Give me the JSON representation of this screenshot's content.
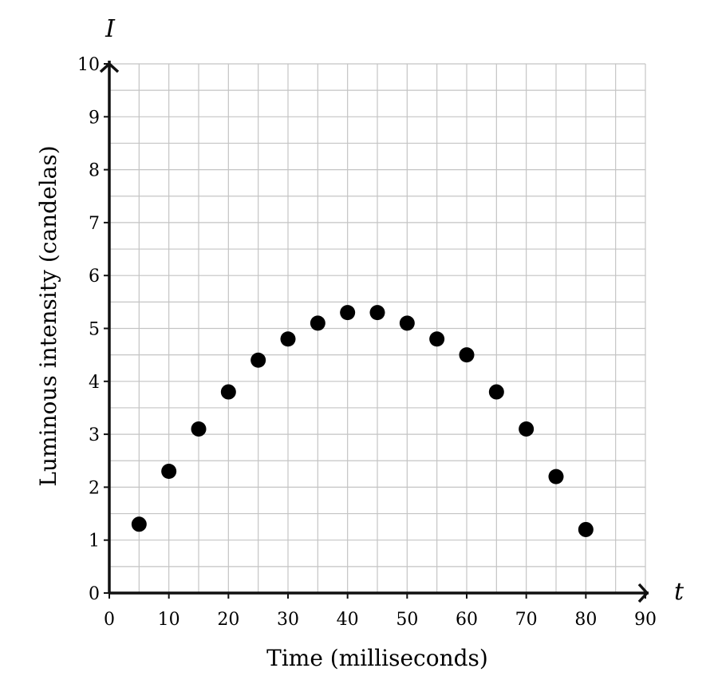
{
  "chart_data": {
    "type": "scatter",
    "title": "",
    "xlabel": "Time (milliseconds)",
    "ylabel": "Luminous intensity (candelas)",
    "x_variable": "t",
    "y_variable": "I",
    "xlim": [
      0,
      90
    ],
    "ylim": [
      0,
      10
    ],
    "x_ticks": [
      0,
      10,
      20,
      30,
      40,
      50,
      60,
      70,
      80,
      90
    ],
    "y_ticks": [
      0,
      1,
      2,
      3,
      4,
      5,
      6,
      7,
      8,
      9,
      10
    ],
    "x_minor_step": 5,
    "y_minor_step": 0.5,
    "grid": true,
    "point_color": "#000000",
    "points": [
      {
        "x": 5,
        "y": 1.3
      },
      {
        "x": 10,
        "y": 2.3
      },
      {
        "x": 15,
        "y": 3.1
      },
      {
        "x": 20,
        "y": 3.8
      },
      {
        "x": 25,
        "y": 4.4
      },
      {
        "x": 30,
        "y": 4.8
      },
      {
        "x": 35,
        "y": 5.1
      },
      {
        "x": 40,
        "y": 5.3
      },
      {
        "x": 45,
        "y": 5.3
      },
      {
        "x": 50,
        "y": 5.1
      },
      {
        "x": 55,
        "y": 4.8
      },
      {
        "x": 60,
        "y": 4.5
      },
      {
        "x": 65,
        "y": 3.8
      },
      {
        "x": 70,
        "y": 3.1
      },
      {
        "x": 75,
        "y": 2.2
      },
      {
        "x": 80,
        "y": 1.2
      }
    ]
  }
}
